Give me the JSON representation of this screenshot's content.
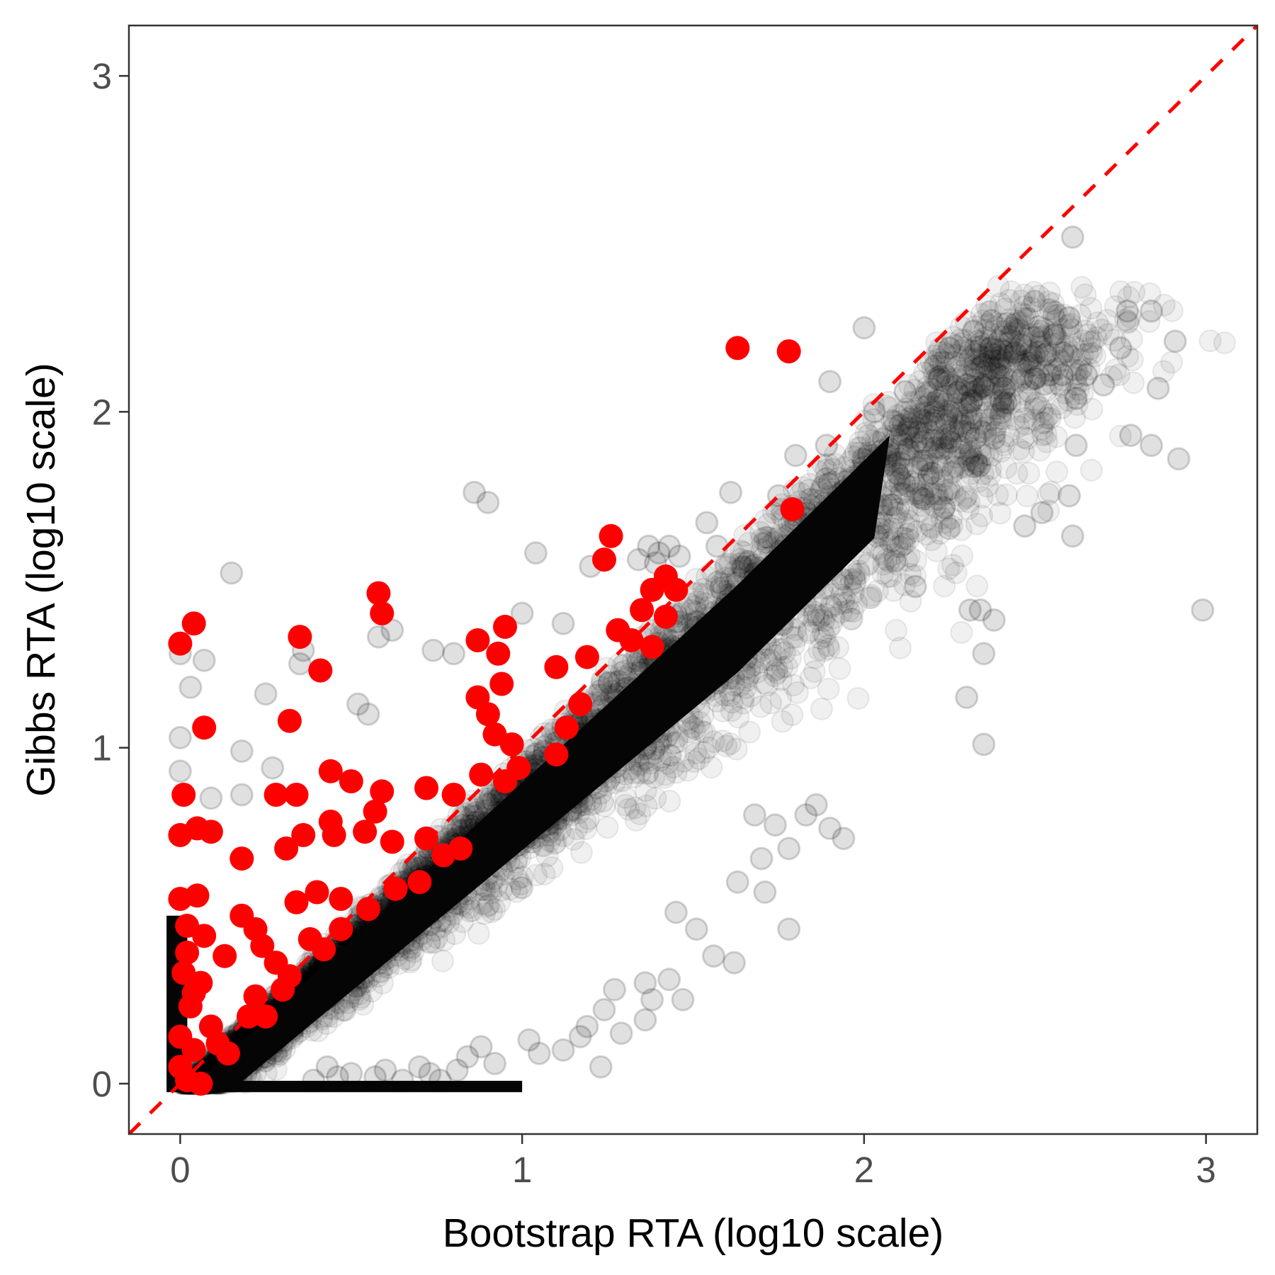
{
  "chart_data": {
    "type": "scatter",
    "title": "",
    "xlabel": "Bootstrap RTA (log10 scale)",
    "ylabel": "Gibbs RTA (log10 scale)",
    "xlim": [
      -0.15,
      3.15
    ],
    "ylim": [
      -0.15,
      3.15
    ],
    "x_ticks": [
      0,
      1,
      2,
      3
    ],
    "y_ticks": [
      0,
      1,
      2,
      3
    ],
    "x_tick_labels": [
      "0",
      "1",
      "2",
      "3"
    ],
    "y_tick_labels": [
      "0",
      "1",
      "2",
      "3"
    ],
    "grid": false,
    "legend": "none",
    "reference_line": {
      "slope": 1,
      "intercept": 0,
      "style": "dashed",
      "color": "#ff0000"
    },
    "series": [
      {
        "color": "#000000",
        "opacity": 0.12,
        "marker": "hollow-circle",
        "density_note": "dense cloud along the diagonal from 0 to about 2.6",
        "points": [
          [
            0.0,
            1.28
          ],
          [
            0.0,
            1.03
          ],
          [
            0.03,
            1.18
          ],
          [
            0.07,
            1.26
          ],
          [
            0.09,
            0.85
          ],
          [
            0.0,
            0.93
          ],
          [
            0.15,
            1.52
          ],
          [
            0.18,
            0.99
          ],
          [
            0.18,
            0.86
          ],
          [
            0.25,
            1.16
          ],
          [
            0.27,
            0.94
          ],
          [
            0.35,
            1.25
          ],
          [
            0.36,
            1.29
          ],
          [
            0.52,
            1.13
          ],
          [
            0.55,
            1.1
          ],
          [
            0.58,
            1.33
          ],
          [
            0.62,
            1.35
          ],
          [
            0.74,
            1.29
          ],
          [
            0.8,
            1.28
          ],
          [
            0.86,
            1.76
          ],
          [
            0.9,
            1.73
          ],
          [
            1.04,
            1.58
          ],
          [
            1.0,
            1.4
          ],
          [
            1.12,
            1.37
          ],
          [
            1.2,
            1.54
          ],
          [
            1.34,
            1.56
          ],
          [
            1.37,
            1.6
          ],
          [
            1.39,
            1.55
          ],
          [
            1.4,
            1.58
          ],
          [
            1.43,
            1.6
          ],
          [
            1.46,
            1.57
          ],
          [
            1.54,
            1.67
          ],
          [
            1.57,
            1.6
          ],
          [
            1.61,
            1.76
          ],
          [
            1.75,
            1.75
          ],
          [
            1.8,
            1.87
          ],
          [
            1.89,
            1.9
          ],
          [
            1.9,
            2.09
          ],
          [
            2.0,
            2.25
          ],
          [
            2.03,
            2.0
          ],
          [
            2.12,
            2.06
          ],
          [
            2.17,
            1.91
          ],
          [
            2.25,
            2.19
          ],
          [
            2.3,
            2.08
          ],
          [
            2.32,
            2.24
          ],
          [
            2.37,
            2.19
          ],
          [
            2.41,
            2.07
          ],
          [
            2.46,
            2.2
          ],
          [
            2.5,
            2.1
          ],
          [
            2.53,
            2.17
          ],
          [
            2.58,
            2.11
          ],
          [
            2.62,
            2.04
          ],
          [
            2.65,
            2.11
          ],
          [
            2.7,
            2.08
          ],
          [
            2.75,
            2.19
          ],
          [
            2.86,
            2.07
          ],
          [
            2.77,
            2.3
          ],
          [
            2.84,
            2.3
          ],
          [
            2.91,
            2.21
          ],
          [
            2.92,
            1.86
          ],
          [
            2.78,
            1.93
          ],
          [
            2.84,
            1.9
          ],
          [
            2.62,
            1.9
          ],
          [
            2.47,
            1.66
          ],
          [
            2.52,
            1.7
          ],
          [
            2.6,
            1.75
          ],
          [
            2.61,
            1.63
          ],
          [
            2.6,
            2.28
          ],
          [
            2.61,
            2.52
          ],
          [
            2.31,
            1.41
          ],
          [
            2.34,
            1.41
          ],
          [
            2.38,
            1.38
          ],
          [
            2.15,
            1.48
          ],
          [
            2.35,
            1.28
          ],
          [
            2.3,
            1.15
          ],
          [
            2.35,
            1.01
          ],
          [
            2.99,
            1.41
          ],
          [
            1.83,
            0.8
          ],
          [
            1.86,
            0.83
          ],
          [
            1.9,
            0.76
          ],
          [
            1.94,
            0.73
          ],
          [
            1.68,
            0.8
          ],
          [
            1.7,
            0.67
          ],
          [
            1.74,
            0.77
          ],
          [
            1.78,
            0.7
          ],
          [
            1.78,
            0.46
          ],
          [
            1.63,
            0.6
          ],
          [
            1.71,
            0.57
          ],
          [
            1.45,
            0.51
          ],
          [
            1.51,
            0.46
          ],
          [
            1.56,
            0.38
          ],
          [
            1.62,
            0.36
          ],
          [
            1.43,
            0.31
          ],
          [
            1.36,
            0.3
          ],
          [
            1.38,
            0.25
          ],
          [
            1.47,
            0.25
          ],
          [
            1.27,
            0.28
          ],
          [
            1.24,
            0.22
          ],
          [
            1.19,
            0.17
          ],
          [
            1.36,
            0.19
          ],
          [
            1.29,
            0.15
          ],
          [
            1.12,
            0.1
          ],
          [
            1.17,
            0.14
          ],
          [
            1.05,
            0.09
          ],
          [
            1.02,
            0.13
          ],
          [
            1.23,
            0.05
          ],
          [
            0.88,
            0.11
          ],
          [
            0.92,
            0.06
          ],
          [
            0.81,
            0.04
          ],
          [
            0.84,
            0.08
          ],
          [
            0.73,
            0.03
          ],
          [
            0.7,
            0.05
          ],
          [
            0.76,
            0.01
          ],
          [
            0.6,
            0.04
          ],
          [
            0.57,
            0.02
          ],
          [
            0.65,
            0.01
          ],
          [
            0.5,
            0.03
          ],
          [
            0.46,
            0.02
          ],
          [
            0.39,
            0.01
          ],
          [
            0.43,
            0.05
          ]
        ]
      },
      {
        "color": "#ff0000",
        "opacity": 1,
        "marker": "filled-circle",
        "points": [
          [
            1.63,
            2.19
          ],
          [
            1.78,
            2.18
          ],
          [
            1.79,
            1.71
          ],
          [
            1.26,
            1.63
          ],
          [
            1.24,
            1.56
          ],
          [
            0.58,
            1.46
          ],
          [
            0.59,
            1.4
          ],
          [
            0.04,
            1.37
          ],
          [
            0.0,
            1.31
          ],
          [
            0.35,
            1.33
          ],
          [
            0.41,
            1.23
          ],
          [
            0.07,
            1.06
          ],
          [
            0.32,
            1.08
          ],
          [
            0.95,
            1.36
          ],
          [
            0.87,
            1.32
          ],
          [
            0.93,
            1.28
          ],
          [
            0.94,
            1.19
          ],
          [
            0.87,
            1.15
          ],
          [
            0.9,
            1.1
          ],
          [
            0.97,
            1.01
          ],
          [
            0.92,
            1.04
          ],
          [
            0.95,
            0.9
          ],
          [
            0.99,
            0.94
          ],
          [
            1.1,
            0.98
          ],
          [
            1.13,
            1.06
          ],
          [
            1.17,
            1.13
          ],
          [
            1.1,
            1.24
          ],
          [
            1.19,
            1.27
          ],
          [
            1.32,
            1.32
          ],
          [
            1.35,
            1.41
          ],
          [
            1.38,
            1.3
          ],
          [
            1.42,
            1.39
          ],
          [
            1.45,
            1.47
          ],
          [
            1.38,
            1.47
          ],
          [
            1.42,
            1.51
          ],
          [
            1.28,
            1.35
          ],
          [
            0.01,
            0.86
          ],
          [
            0.0,
            0.74
          ],
          [
            0.05,
            0.76
          ],
          [
            0.09,
            0.75
          ],
          [
            0.28,
            0.86
          ],
          [
            0.34,
            0.86
          ],
          [
            0.44,
            0.93
          ],
          [
            0.5,
            0.9
          ],
          [
            0.44,
            0.78
          ],
          [
            0.59,
            0.87
          ],
          [
            0.57,
            0.81
          ],
          [
            0.72,
            0.88
          ],
          [
            0.8,
            0.86
          ],
          [
            0.88,
            0.92
          ],
          [
            0.18,
            0.67
          ],
          [
            0.31,
            0.7
          ],
          [
            0.36,
            0.74
          ],
          [
            0.45,
            0.74
          ],
          [
            0.54,
            0.75
          ],
          [
            0.62,
            0.72
          ],
          [
            0.72,
            0.73
          ],
          [
            0.77,
            0.68
          ],
          [
            0.82,
            0.7
          ],
          [
            0.7,
            0.6
          ],
          [
            0.63,
            0.58
          ],
          [
            0.55,
            0.52
          ],
          [
            0.47,
            0.55
          ],
          [
            0.4,
            0.57
          ],
          [
            0.34,
            0.54
          ],
          [
            0.0,
            0.55
          ],
          [
            0.05,
            0.56
          ],
          [
            0.02,
            0.47
          ],
          [
            0.07,
            0.44
          ],
          [
            0.02,
            0.39
          ],
          [
            0.18,
            0.5
          ],
          [
            0.22,
            0.46
          ],
          [
            0.24,
            0.41
          ],
          [
            0.13,
            0.38
          ],
          [
            0.28,
            0.36
          ],
          [
            0.32,
            0.32
          ],
          [
            0.42,
            0.4
          ],
          [
            0.47,
            0.46
          ],
          [
            0.38,
            0.43
          ],
          [
            0.3,
            0.28
          ],
          [
            0.06,
            0.3
          ],
          [
            0.03,
            0.23
          ],
          [
            0.22,
            0.26
          ],
          [
            0.2,
            0.2
          ],
          [
            0.25,
            0.2
          ],
          [
            0.09,
            0.17
          ],
          [
            0.11,
            0.12
          ],
          [
            0.14,
            0.09
          ],
          [
            0.04,
            0.1
          ],
          [
            0.0,
            0.05
          ],
          [
            0.02,
            0.01
          ],
          [
            0.06,
            0.0
          ],
          [
            0.0,
            0.14
          ],
          [
            0.01,
            0.33
          ],
          [
            0.04,
            0.27
          ]
        ]
      }
    ]
  }
}
